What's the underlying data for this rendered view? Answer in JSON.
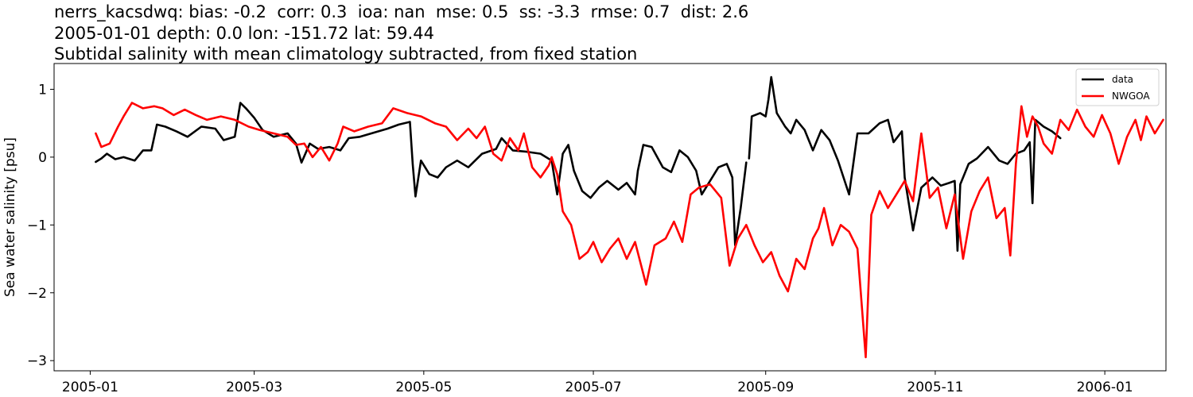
{
  "chart_data": {
    "type": "line",
    "title_lines": [
      "nerrs_kacsdwq: bias: -0.2  corr: 0.3  ioa: nan  mse: 0.5  ss: -3.3  rmse: 0.7  dist: 2.6",
      "2005-01-01 depth: 0.0 lon: -151.72 lat: 59.44",
      "Subtidal salinity with mean climatology subtracted, from fixed station"
    ],
    "xlabel": "",
    "ylabel": "Sea water salinity [psu]",
    "xlim": [
      "2004-12-19",
      "2006-01-23"
    ],
    "ylim": [
      -3.15,
      1.38
    ],
    "x_ticks": [
      "2005-01",
      "2005-03",
      "2005-05",
      "2005-07",
      "2005-09",
      "2005-11",
      "2006-01"
    ],
    "y_ticks": [
      1,
      0,
      -1,
      -2,
      -3
    ],
    "y_tick_labels": [
      "1",
      "0",
      "−1",
      "−2",
      "−3"
    ],
    "grid": false,
    "legend_position": "upper right",
    "series": [
      {
        "name": "data",
        "color": "#000000",
        "segments": [
          [
            [
              "2005-01-03",
              -0.07
            ],
            [
              "2005-01-05",
              -0.02
            ],
            [
              "2005-01-07",
              0.05
            ],
            [
              "2005-01-10",
              -0.03
            ],
            [
              "2005-01-13",
              0.0
            ],
            [
              "2005-01-17",
              -0.05
            ],
            [
              "2005-01-20",
              0.1
            ],
            [
              "2005-01-23",
              0.1
            ],
            [
              "2005-01-25",
              0.48
            ],
            [
              "2005-01-28",
              0.45
            ],
            [
              "2005-02-01",
              0.38
            ],
            [
              "2005-02-05",
              0.3
            ],
            [
              "2005-02-10",
              0.45
            ],
            [
              "2005-02-15",
              0.42
            ],
            [
              "2005-02-18",
              0.25
            ],
            [
              "2005-02-22",
              0.3
            ],
            [
              "2005-02-24",
              0.8
            ],
            [
              "2005-02-26",
              0.72
            ],
            [
              "2005-03-01",
              0.58
            ],
            [
              "2005-03-04",
              0.4
            ],
            [
              "2005-03-08",
              0.3
            ],
            [
              "2005-03-13",
              0.35
            ],
            [
              "2005-03-16",
              0.2
            ],
            [
              "2005-03-18",
              -0.08
            ],
            [
              "2005-03-21",
              0.2
            ],
            [
              "2005-03-24",
              0.12
            ],
            [
              "2005-03-28",
              0.15
            ],
            [
              "2005-04-01",
              0.1
            ],
            [
              "2005-04-04",
              0.28
            ],
            [
              "2005-04-08",
              0.3
            ],
            [
              "2005-04-13",
              0.36
            ],
            [
              "2005-04-18",
              0.42
            ],
            [
              "2005-04-22",
              0.48
            ],
            [
              "2005-04-26",
              0.52
            ],
            [
              "2005-04-27",
              -0.1
            ],
            [
              "2005-04-28",
              -0.58
            ],
            [
              "2005-04-30",
              -0.05
            ],
            [
              "2005-05-03",
              -0.25
            ],
            [
              "2005-05-06",
              -0.3
            ],
            [
              "2005-05-09",
              -0.15
            ],
            [
              "2005-05-13",
              -0.05
            ],
            [
              "2005-05-17",
              -0.15
            ],
            [
              "2005-05-22",
              0.05
            ],
            [
              "2005-05-27",
              0.12
            ],
            [
              "2005-05-29",
              0.28
            ],
            [
              "2005-06-02",
              0.1
            ],
            [
              "2005-06-07",
              0.08
            ],
            [
              "2005-06-12",
              0.05
            ],
            [
              "2005-06-16",
              -0.05
            ],
            [
              "2005-06-18",
              -0.55
            ],
            [
              "2005-06-20",
              0.05
            ],
            [
              "2005-06-22",
              0.18
            ],
            [
              "2005-06-24",
              -0.2
            ],
            [
              "2005-06-27",
              -0.5
            ],
            [
              "2005-06-30",
              -0.6
            ],
            [
              "2005-07-03",
              -0.45
            ],
            [
              "2005-07-06",
              -0.35
            ],
            [
              "2005-07-10",
              -0.48
            ],
            [
              "2005-07-13",
              -0.38
            ],
            [
              "2005-07-16",
              -0.55
            ],
            [
              "2005-07-17",
              -0.2
            ],
            [
              "2005-07-19",
              0.18
            ],
            [
              "2005-07-22",
              0.15
            ],
            [
              "2005-07-26",
              -0.15
            ],
            [
              "2005-07-29",
              -0.22
            ],
            [
              "2005-08-01",
              0.1
            ],
            [
              "2005-08-04",
              0.0
            ],
            [
              "2005-08-07",
              -0.2
            ],
            [
              "2005-08-09",
              -0.55
            ],
            [
              "2005-08-12",
              -0.35
            ],
            [
              "2005-08-15",
              -0.15
            ],
            [
              "2005-08-18",
              -0.1
            ],
            [
              "2005-08-20",
              -0.3
            ],
            [
              "2005-08-21",
              -1.3
            ],
            [
              "2005-08-23",
              -0.75
            ],
            [
              "2005-08-25",
              -0.08
            ]
          ],
          [
            [
              "2005-08-26",
              -0.02
            ],
            [
              "2005-08-27",
              0.6
            ],
            [
              "2005-08-30",
              0.65
            ],
            [
              "2005-09-01",
              0.6
            ],
            [
              "2005-09-02",
              0.85
            ],
            [
              "2005-09-03",
              1.18
            ],
            [
              "2005-09-05",
              0.65
            ],
            [
              "2005-09-08",
              0.45
            ],
            [
              "2005-09-10",
              0.35
            ],
            [
              "2005-09-12",
              0.55
            ],
            [
              "2005-09-15",
              0.4
            ],
            [
              "2005-09-18",
              0.1
            ],
            [
              "2005-09-21",
              0.4
            ],
            [
              "2005-09-24",
              0.25
            ],
            [
              "2005-09-27",
              -0.05
            ],
            [
              "2005-10-01",
              -0.55
            ],
            [
              "2005-10-04",
              0.35
            ],
            [
              "2005-10-08",
              0.35
            ],
            [
              "2005-10-12",
              0.5
            ],
            [
              "2005-10-15",
              0.55
            ],
            [
              "2005-10-17",
              0.22
            ],
            [
              "2005-10-20",
              0.38
            ],
            [
              "2005-10-21",
              -0.3
            ],
            [
              "2005-10-24",
              -1.08
            ],
            [
              "2005-10-27",
              -0.45
            ],
            [
              "2005-10-31",
              -0.3
            ],
            [
              "2005-11-03",
              -0.42
            ],
            [
              "2005-11-06",
              -0.38
            ],
            [
              "2005-11-08",
              -0.35
            ],
            [
              "2005-11-09",
              -1.38
            ],
            [
              "2005-11-10",
              -0.4
            ],
            [
              "2005-11-13",
              -0.1
            ],
            [
              "2005-11-16",
              -0.02
            ],
            [
              "2005-11-20",
              0.15
            ],
            [
              "2005-11-24",
              -0.05
            ],
            [
              "2005-11-27",
              -0.1
            ],
            [
              "2005-11-30",
              0.05
            ],
            [
              "2005-12-03",
              0.1
            ],
            [
              "2005-12-05",
              0.22
            ],
            [
              "2005-12-06",
              -0.68
            ],
            [
              "2005-12-07",
              0.55
            ],
            [
              "2005-12-10",
              0.45
            ],
            [
              "2005-12-13",
              0.38
            ],
            [
              "2005-12-16",
              0.28
            ]
          ]
        ]
      },
      {
        "name": "NWGOA",
        "color": "#ff0000",
        "segments": [
          [
            [
              "2005-01-03",
              0.35
            ],
            [
              "2005-01-05",
              0.15
            ],
            [
              "2005-01-08",
              0.2
            ],
            [
              "2005-01-11",
              0.45
            ],
            [
              "2005-01-13",
              0.6
            ],
            [
              "2005-01-16",
              0.8
            ],
            [
              "2005-01-20",
              0.72
            ],
            [
              "2005-01-24",
              0.75
            ],
            [
              "2005-01-27",
              0.72
            ],
            [
              "2005-01-31",
              0.62
            ],
            [
              "2005-02-04",
              0.7
            ],
            [
              "2005-02-08",
              0.62
            ],
            [
              "2005-02-12",
              0.55
            ],
            [
              "2005-02-17",
              0.6
            ],
            [
              "2005-02-22",
              0.55
            ],
            [
              "2005-02-27",
              0.45
            ],
            [
              "2005-03-03",
              0.4
            ],
            [
              "2005-03-08",
              0.35
            ],
            [
              "2005-03-13",
              0.3
            ],
            [
              "2005-03-16",
              0.18
            ],
            [
              "2005-03-19",
              0.2
            ],
            [
              "2005-03-22",
              0.0
            ],
            [
              "2005-03-25",
              0.15
            ],
            [
              "2005-03-28",
              -0.05
            ],
            [
              "2005-03-31",
              0.2
            ],
            [
              "2005-04-02",
              0.45
            ],
            [
              "2005-04-06",
              0.38
            ],
            [
              "2005-04-11",
              0.45
            ],
            [
              "2005-04-16",
              0.5
            ],
            [
              "2005-04-20",
              0.72
            ],
            [
              "2005-04-25",
              0.65
            ],
            [
              "2005-04-30",
              0.6
            ],
            [
              "2005-05-05",
              0.5
            ],
            [
              "2005-05-09",
              0.45
            ],
            [
              "2005-05-13",
              0.25
            ],
            [
              "2005-05-17",
              0.42
            ],
            [
              "2005-05-20",
              0.28
            ],
            [
              "2005-05-23",
              0.45
            ],
            [
              "2005-05-26",
              0.05
            ],
            [
              "2005-05-29",
              -0.05
            ],
            [
              "2005-06-01",
              0.28
            ],
            [
              "2005-06-04",
              0.1
            ],
            [
              "2005-06-06",
              0.35
            ],
            [
              "2005-06-09",
              -0.15
            ],
            [
              "2005-06-12",
              -0.3
            ],
            [
              "2005-06-15",
              -0.12
            ],
            [
              "2005-06-16",
              0.0
            ],
            [
              "2005-06-18",
              -0.25
            ],
            [
              "2005-06-20",
              -0.8
            ],
            [
              "2005-06-23",
              -1.0
            ],
            [
              "2005-06-26",
              -1.5
            ],
            [
              "2005-06-29",
              -1.4
            ],
            [
              "2005-07-01",
              -1.25
            ],
            [
              "2005-07-04",
              -1.55
            ],
            [
              "2005-07-07",
              -1.35
            ],
            [
              "2005-07-10",
              -1.2
            ],
            [
              "2005-07-13",
              -1.5
            ],
            [
              "2005-07-16",
              -1.25
            ],
            [
              "2005-07-20",
              -1.88
            ],
            [
              "2005-07-23",
              -1.3
            ],
            [
              "2005-07-27",
              -1.2
            ],
            [
              "2005-07-30",
              -0.95
            ],
            [
              "2005-08-02",
              -1.25
            ],
            [
              "2005-08-05",
              -0.55
            ],
            [
              "2005-08-08",
              -0.45
            ],
            [
              "2005-08-12",
              -0.4
            ],
            [
              "2005-08-16",
              -0.6
            ],
            [
              "2005-08-19",
              -1.6
            ],
            [
              "2005-08-22",
              -1.2
            ],
            [
              "2005-08-25",
              -1.0
            ],
            [
              "2005-08-28",
              -1.3
            ],
            [
              "2005-08-31",
              -1.55
            ],
            [
              "2005-09-03",
              -1.4
            ],
            [
              "2005-09-06",
              -1.75
            ],
            [
              "2005-09-09",
              -1.98
            ],
            [
              "2005-09-12",
              -1.5
            ],
            [
              "2005-09-15",
              -1.65
            ],
            [
              "2005-09-18",
              -1.2
            ],
            [
              "2005-09-20",
              -1.05
            ],
            [
              "2005-09-22",
              -0.75
            ],
            [
              "2005-09-25",
              -1.3
            ],
            [
              "2005-09-28",
              -1.0
            ],
            [
              "2005-10-01",
              -1.1
            ],
            [
              "2005-10-04",
              -1.35
            ],
            [
              "2005-10-07",
              -2.95
            ],
            [
              "2005-10-09",
              -0.85
            ],
            [
              "2005-10-12",
              -0.5
            ],
            [
              "2005-10-15",
              -0.75
            ],
            [
              "2005-10-18",
              -0.55
            ],
            [
              "2005-10-21",
              -0.35
            ],
            [
              "2005-10-24",
              -0.65
            ],
            [
              "2005-10-27",
              0.35
            ],
            [
              "2005-10-30",
              -0.6
            ],
            [
              "2005-11-02",
              -0.45
            ],
            [
              "2005-11-05",
              -1.05
            ],
            [
              "2005-11-08",
              -0.55
            ],
            [
              "2005-11-11",
              -1.5
            ],
            [
              "2005-11-14",
              -0.8
            ],
            [
              "2005-11-17",
              -0.5
            ],
            [
              "2005-11-20",
              -0.3
            ],
            [
              "2005-11-23",
              -0.9
            ],
            [
              "2005-11-26",
              -0.75
            ],
            [
              "2005-11-28",
              -1.45
            ],
            [
              "2005-11-30",
              -0.1
            ],
            [
              "2005-12-02",
              0.75
            ],
            [
              "2005-12-04",
              0.3
            ],
            [
              "2005-12-06",
              0.6
            ],
            [
              "2005-12-08",
              0.45
            ],
            [
              "2005-12-10",
              0.2
            ],
            [
              "2005-12-13",
              0.05
            ],
            [
              "2005-12-16",
              0.55
            ],
            [
              "2005-12-19",
              0.4
            ],
            [
              "2005-12-22",
              0.7
            ],
            [
              "2005-12-25",
              0.45
            ],
            [
              "2005-12-28",
              0.3
            ],
            [
              "2005-12-31",
              0.62
            ],
            [
              "2006-01-03",
              0.35
            ],
            [
              "2006-01-06",
              -0.1
            ],
            [
              "2006-01-09",
              0.3
            ],
            [
              "2006-01-12",
              0.55
            ],
            [
              "2006-01-14",
              0.25
            ],
            [
              "2006-01-16",
              0.6
            ],
            [
              "2006-01-19",
              0.35
            ],
            [
              "2006-01-22",
              0.55
            ]
          ]
        ]
      }
    ]
  }
}
